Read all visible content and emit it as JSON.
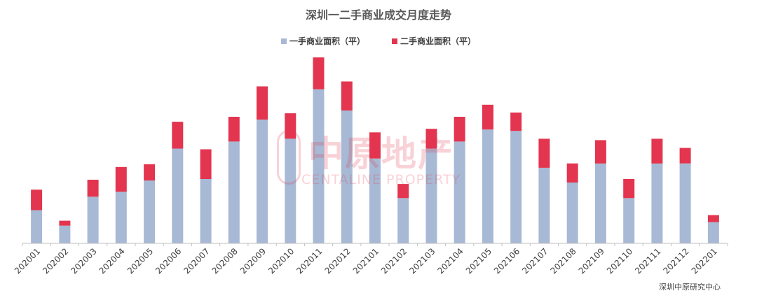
{
  "chart_data": {
    "type": "bar",
    "stacked": true,
    "title": "深圳一二手商业成交月度走势",
    "categories": [
      "202001",
      "202002",
      "202003",
      "202004",
      "202005",
      "202006",
      "202007",
      "202008",
      "202009",
      "202010",
      "202011",
      "202012",
      "202101",
      "202102",
      "202103",
      "202104",
      "202105",
      "202106",
      "202107",
      "202108",
      "202109",
      "202110",
      "202111",
      "202112",
      "202201"
    ],
    "series": [
      {
        "name": "一手商业面积（平）",
        "color": "#a7b9d4",
        "values": [
          47,
          25,
          66,
          73,
          89,
          134,
          91,
          144,
          175,
          148,
          218,
          188,
          120,
          64,
          134,
          144,
          161,
          159,
          107,
          86,
          113,
          64,
          113,
          113,
          30
        ]
      },
      {
        "name": "二手商业面积（平）",
        "color": "#e3354f",
        "values": [
          29,
          7,
          24,
          35,
          23,
          38,
          42,
          35,
          47,
          36,
          45,
          41,
          37,
          20,
          28,
          35,
          35,
          26,
          41,
          27,
          33,
          27,
          35,
          22,
          10
        ]
      }
    ],
    "ylim": [
      0,
      270
    ],
    "grid": false,
    "legend_position": "top-center"
  },
  "watermark": {
    "cn": "中原地产",
    "en": "CENTALINE PROPERTY"
  },
  "source": "深圳中原研究中心"
}
